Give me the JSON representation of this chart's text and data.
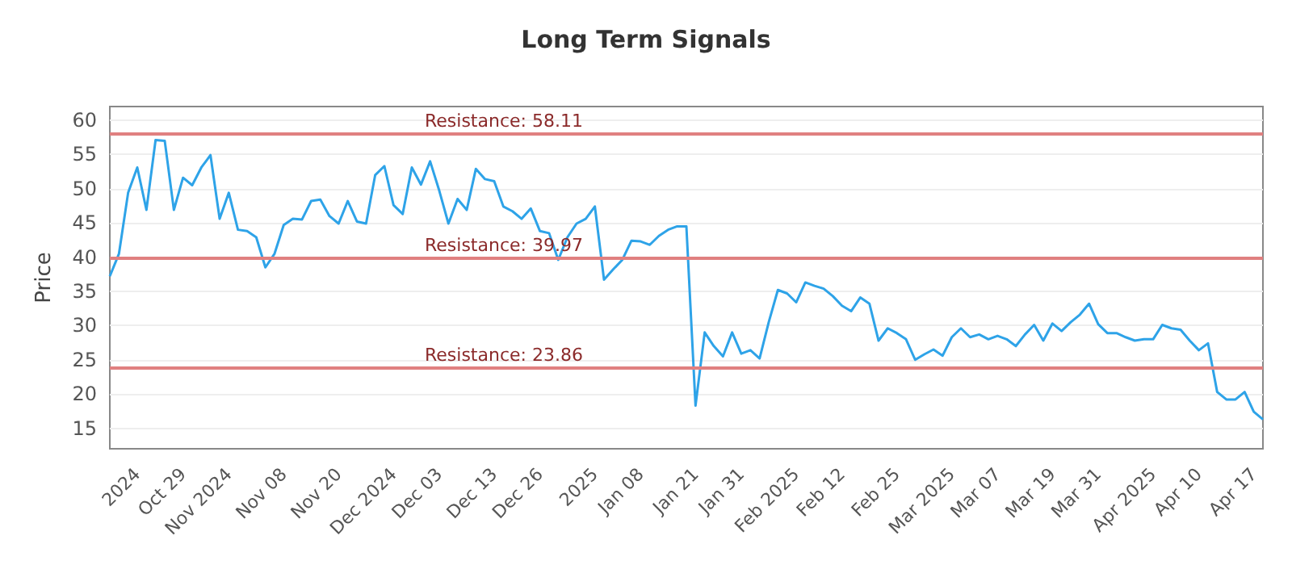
{
  "chart_data": {
    "type": "line",
    "title": "Long Term Signals",
    "ylabel": "Price",
    "categories": [
      null,
      null,
      null,
      "2024",
      null,
      null,
      null,
      null,
      "Oct 29",
      null,
      null,
      null,
      null,
      "Nov 2024",
      null,
      null,
      null,
      null,
      null,
      "Nov 08",
      null,
      null,
      null,
      null,
      null,
      "Nov 20",
      null,
      null,
      null,
      null,
      null,
      "Dec 2024",
      null,
      null,
      null,
      null,
      "Dec 03",
      null,
      null,
      null,
      null,
      null,
      "Dec 13",
      null,
      null,
      null,
      null,
      "Dec 26",
      null,
      null,
      null,
      null,
      null,
      "2025",
      null,
      null,
      null,
      null,
      "Jan 08",
      null,
      null,
      null,
      null,
      null,
      "Jan 21",
      null,
      null,
      null,
      null,
      "Jan 31",
      null,
      null,
      null,
      null,
      null,
      "Feb 2025",
      null,
      null,
      null,
      null,
      "Feb 12",
      null,
      null,
      null,
      null,
      null,
      "Feb 25",
      null,
      null,
      null,
      null,
      null,
      "Mar 2025",
      null,
      null,
      null,
      null,
      "Mar 07",
      null,
      null,
      null,
      null,
      null,
      "Mar 19",
      null,
      null,
      null,
      null,
      "Mar 31",
      null,
      null,
      null,
      null,
      null,
      "Apr 2025",
      null,
      null,
      null,
      null,
      "Apr 10",
      null,
      null,
      null,
      null,
      null,
      "Apr 17",
      null
    ],
    "series": [
      {
        "color": "#2ea3e8",
        "values": [
          37.2,
          40.5,
          49.4,
          53.1,
          46.9,
          57.1,
          57.0,
          46.9,
          51.6,
          50.5,
          53.1,
          54.9,
          45.6,
          49.4,
          44.0,
          43.8,
          42.9,
          38.5,
          40.5,
          44.7,
          45.6,
          45.5,
          48.2,
          48.4,
          46.0,
          44.9,
          48.2,
          45.2,
          44.9,
          52.0,
          53.3,
          47.6,
          46.3,
          53.1,
          50.6,
          54.0,
          49.7,
          44.9,
          48.5,
          46.9,
          52.9,
          51.4,
          51.1,
          47.4,
          46.7,
          45.6,
          47.1,
          43.8,
          43.5,
          39.6,
          42.9,
          44.9,
          45.6,
          47.4,
          36.7,
          38.2,
          39.6,
          42.4,
          42.3,
          41.8,
          43.1,
          44.0,
          44.5,
          44.5,
          18.3,
          29.0,
          27.0,
          25.5,
          29.0,
          25.9,
          26.4,
          25.2,
          30.5,
          35.2,
          34.7,
          33.4,
          36.3,
          35.8,
          35.4,
          34.3,
          32.9,
          32.1,
          34.1,
          33.2,
          27.8,
          29.6,
          28.9,
          28.0,
          25.0,
          25.8,
          26.5,
          25.6,
          28.3,
          29.6,
          28.3,
          28.7,
          28.0,
          28.5,
          28.0,
          27.0,
          28.7,
          30.1,
          27.8,
          30.3,
          29.2,
          30.5,
          31.6,
          33.2,
          30.2,
          28.9,
          28.9,
          28.3,
          27.8,
          28.0,
          28.0,
          30.1,
          29.6,
          29.4,
          27.8,
          26.4,
          27.4,
          20.3,
          19.2,
          19.2,
          20.3,
          17.4,
          16.3
        ]
      }
    ],
    "ylim": [
      12,
      62
    ],
    "yticks": [
      15,
      20,
      25,
      30,
      35,
      40,
      45,
      50,
      55,
      60
    ],
    "grid": "y",
    "marker": "none",
    "ref_lines": [
      {
        "axis": "y",
        "value": 58.11,
        "label": "Resistance: 58.11",
        "color": "#e08080"
      },
      {
        "axis": "y",
        "value": 39.97,
        "label": "Resistance: 39.97",
        "color": "#e08080"
      },
      {
        "axis": "y",
        "value": 23.86,
        "label": "Resistance: 23.86",
        "color": "#e08080"
      }
    ]
  }
}
